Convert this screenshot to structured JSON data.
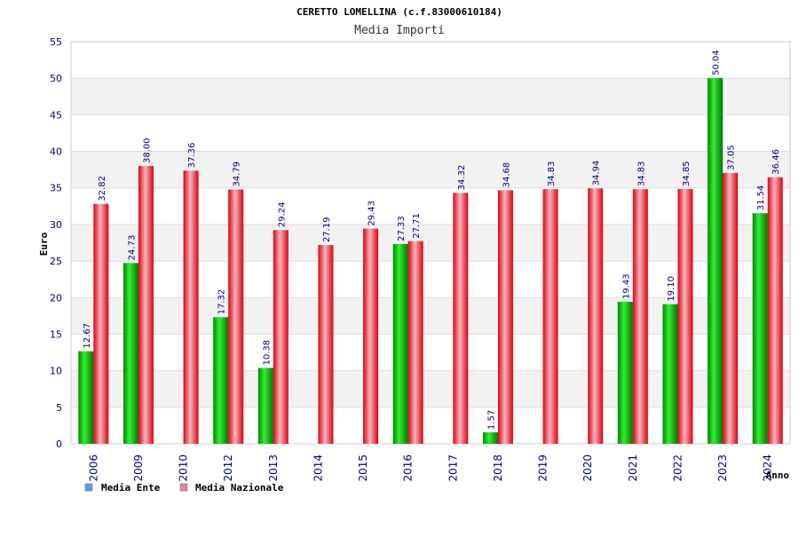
{
  "chart_data": {
    "type": "bar",
    "title": "CERETTO LOMELLINA (c.f.83000610184)",
    "subtitle": "Media Importi",
    "ylabel": "Euro",
    "xlabel": "Anno",
    "ylim": [
      0,
      55
    ],
    "yticks": [
      0,
      5,
      10,
      15,
      20,
      25,
      30,
      35,
      40,
      45,
      50,
      55
    ],
    "grid": true,
    "legend_position": "bottom-left",
    "categories": [
      "2006",
      "2009",
      "2010",
      "2012",
      "2013",
      "2014",
      "2015",
      "2016",
      "2017",
      "2018",
      "2019",
      "2020",
      "2021",
      "2022",
      "2023",
      "2024"
    ],
    "series": [
      {
        "name": "Media Ente",
        "color": "#00b000",
        "legend_color": "#6699ee",
        "values": [
          12.67,
          24.73,
          null,
          17.32,
          10.38,
          null,
          null,
          27.33,
          null,
          1.57,
          null,
          null,
          19.43,
          19.1,
          50.04,
          31.54
        ],
        "labels": [
          "12.67",
          "24.73",
          "",
          "17.32",
          "10.38",
          "",
          "",
          "27.33",
          "",
          "1.57",
          "",
          "",
          "19.43",
          "19.10",
          "50.04",
          "31.54"
        ]
      },
      {
        "name": "Media Nazionale",
        "color": "#ee1122",
        "legend_color": "#dd88aa",
        "values": [
          32.82,
          38.0,
          37.36,
          34.79,
          29.24,
          27.19,
          29.43,
          27.71,
          34.32,
          34.68,
          34.83,
          34.94,
          34.83,
          34.85,
          37.05,
          36.46
        ],
        "labels": [
          "32.82",
          "38.00",
          "37.36",
          "34.79",
          "29.24",
          "27.19",
          "29.43",
          "27.71",
          "34.32",
          "34.68",
          "34.83",
          "34.94",
          "34.83",
          "34.85",
          "37.05",
          "36.46"
        ]
      }
    ]
  }
}
